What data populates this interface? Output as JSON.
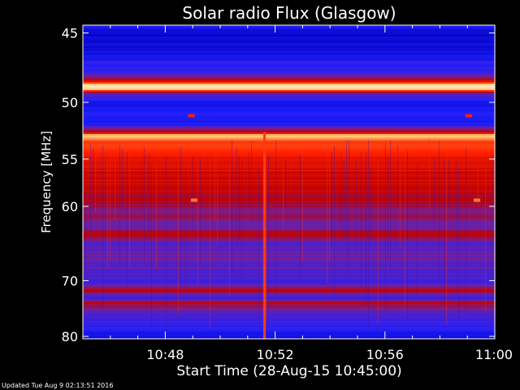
{
  "chart_data": {
    "type": "heatmap",
    "title": "Solar radio Flux (Glasgow)",
    "ylabel": "Frequency [MHz]",
    "xlabel": "Start Time (28-Aug-15 10:45:00)",
    "x_ticks": [
      "10:48",
      "10:52",
      "10:56",
      "11:00"
    ],
    "x_tick_minutes": [
      48,
      52,
      56,
      60
    ],
    "xlim_minutes": [
      45,
      60
    ],
    "y_ticks": [
      45,
      50,
      55,
      60,
      70,
      80
    ],
    "ylim": [
      44.5,
      80.5
    ],
    "y_scale": "reciprocal",
    "colormap": [
      "#000000",
      "#0000c0",
      "#2020ff",
      "#7020a0",
      "#c00000",
      "#ff2000",
      "#ff6020",
      "#ffd080",
      "#ffffff"
    ],
    "bands": [
      {
        "f": 44.7,
        "w": 0.3,
        "level": 0.25
      },
      {
        "f": 45.1,
        "w": 0.5,
        "level": 0.15
      },
      {
        "f": 46.0,
        "w": 1.2,
        "level": 0.18
      },
      {
        "f": 47.2,
        "w": 0.8,
        "level": 0.28
      },
      {
        "f": 48.2,
        "w": 0.4,
        "level": 0.45
      },
      {
        "f": 48.8,
        "w": 0.45,
        "level": 1.0
      },
      {
        "f": 49.5,
        "w": 0.5,
        "level": 0.3
      },
      {
        "f": 50.2,
        "w": 0.6,
        "level": 0.2
      },
      {
        "f": 51.0,
        "w": 0.5,
        "level": 0.28
      },
      {
        "f": 51.7,
        "w": 0.5,
        "level": 0.2
      },
      {
        "f": 52.3,
        "w": 0.4,
        "level": 0.45
      },
      {
        "f": 52.9,
        "w": 0.35,
        "level": 0.95
      },
      {
        "f": 53.5,
        "w": 0.6,
        "level": 0.7
      },
      {
        "f": 54.5,
        "w": 1.2,
        "level": 0.62
      },
      {
        "f": 56.0,
        "w": 1.5,
        "level": 0.55
      },
      {
        "f": 58.0,
        "w": 2.0,
        "level": 0.52
      },
      {
        "f": 61.0,
        "w": 2.5,
        "level": 0.42
      },
      {
        "f": 63.5,
        "w": 0.7,
        "level": 0.56
      },
      {
        "f": 66.0,
        "w": 3.0,
        "level": 0.36
      },
      {
        "f": 69.0,
        "w": 1.5,
        "level": 0.33
      },
      {
        "f": 71.5,
        "w": 1.0,
        "level": 0.48
      },
      {
        "f": 74.0,
        "w": 1.0,
        "level": 0.5
      },
      {
        "f": 76.0,
        "w": 2.5,
        "level": 0.3
      },
      {
        "f": 78.5,
        "w": 1.5,
        "level": 0.26
      },
      {
        "f": 79.6,
        "w": 1.0,
        "level": 0.16
      }
    ],
    "features": [
      {
        "type": "vertical_burst",
        "minute": 51.6,
        "f_range": [
          52.5,
          80.5
        ],
        "level": 0.68
      },
      {
        "type": "spot",
        "minute": 49.05,
        "f": 59.3,
        "level": 0.78
      },
      {
        "type": "spot",
        "minute": 59.35,
        "f": 59.3,
        "level": 0.78
      },
      {
        "type": "spot",
        "minute": 48.95,
        "f": 51.1,
        "level": 0.62
      },
      {
        "type": "spot",
        "minute": 59.05,
        "f": 51.1,
        "level": 0.62
      }
    ]
  },
  "footer": {
    "updated": "Updated Tue Aug  9 02:13:51 2016"
  }
}
